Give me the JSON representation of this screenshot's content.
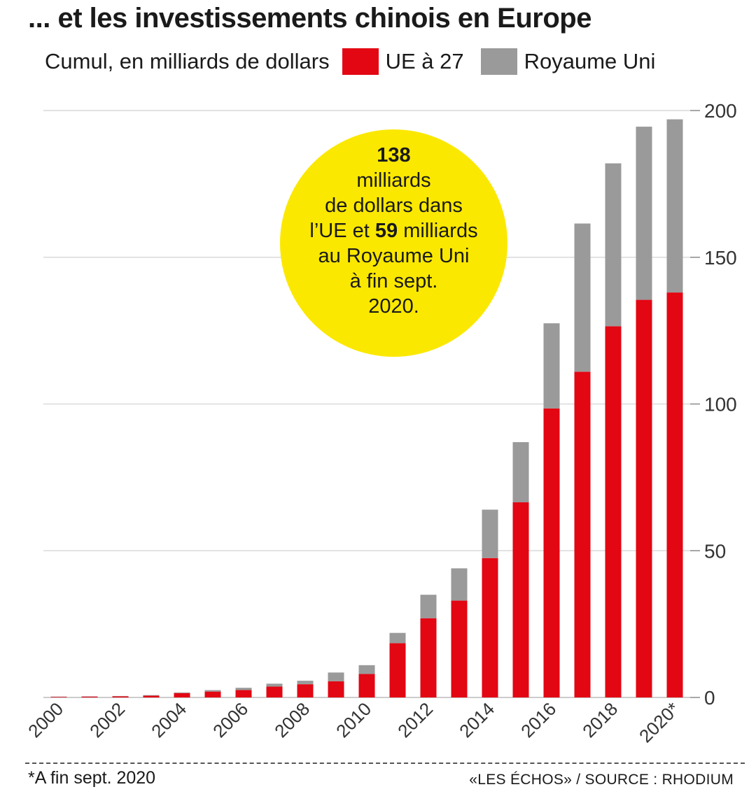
{
  "title": "... et les investissements chinois en Europe",
  "legend": {
    "unit": "Cumul, en milliards de dollars",
    "eu_label": "UE à 27",
    "uk_label": "Royaume Uni"
  },
  "bubble": {
    "big_eu": "138",
    "line1": "milliards",
    "line2": "de dollars dans",
    "line3_pre": "l’UE et ",
    "big_uk": "59",
    "line3_post": " milliards",
    "line4": "au Royaume Uni",
    "line5": "à fin sept.",
    "line6": "2020."
  },
  "colors": {
    "eu": "#e30613",
    "uk": "#9a9a9a",
    "bubble": "#fbe800",
    "grid": "#d9d9d9"
  },
  "chart_data": {
    "type": "bar",
    "stacked": true,
    "title": "... et les investissements chinois en Europe",
    "ylabel": "Cumul, en milliards de dollars",
    "ylim": [
      0,
      200
    ],
    "yticks": [
      0,
      50,
      100,
      150,
      200
    ],
    "categories": [
      "2000",
      "2001",
      "2002",
      "2003",
      "2004",
      "2005",
      "2006",
      "2007",
      "2008",
      "2009",
      "2010",
      "2011",
      "2012",
      "2013",
      "2014",
      "2015",
      "2016",
      "2017",
      "2018",
      "2019",
      "2020*"
    ],
    "xtick_labels": [
      "2000",
      "",
      "2002",
      "",
      "2004",
      "",
      "2006",
      "",
      "2008",
      "",
      "2010",
      "",
      "2012",
      "",
      "2014",
      "",
      "2016",
      "",
      "2018",
      "",
      "2020*"
    ],
    "series": [
      {
        "name": "UE à 27",
        "values": [
          0.2,
          0.3,
          0.4,
          0.6,
          1.5,
          2,
          2.5,
          3.7,
          4.5,
          5.5,
          8,
          18.5,
          27,
          33,
          47.5,
          66.5,
          98.5,
          111,
          126.5,
          135.5,
          138
        ]
      },
      {
        "name": "Royaume Uni",
        "values": [
          0.1,
          0.1,
          0.1,
          0.2,
          0.2,
          0.5,
          0.8,
          1,
          1.2,
          3,
          3,
          3.5,
          8,
          11,
          16.5,
          20.5,
          29,
          50.5,
          55.5,
          59,
          59
        ]
      }
    ]
  },
  "footnote": "*A fin sept. 2020",
  "source": "«LES ÉCHOS» / SOURCE : RHODIUM"
}
